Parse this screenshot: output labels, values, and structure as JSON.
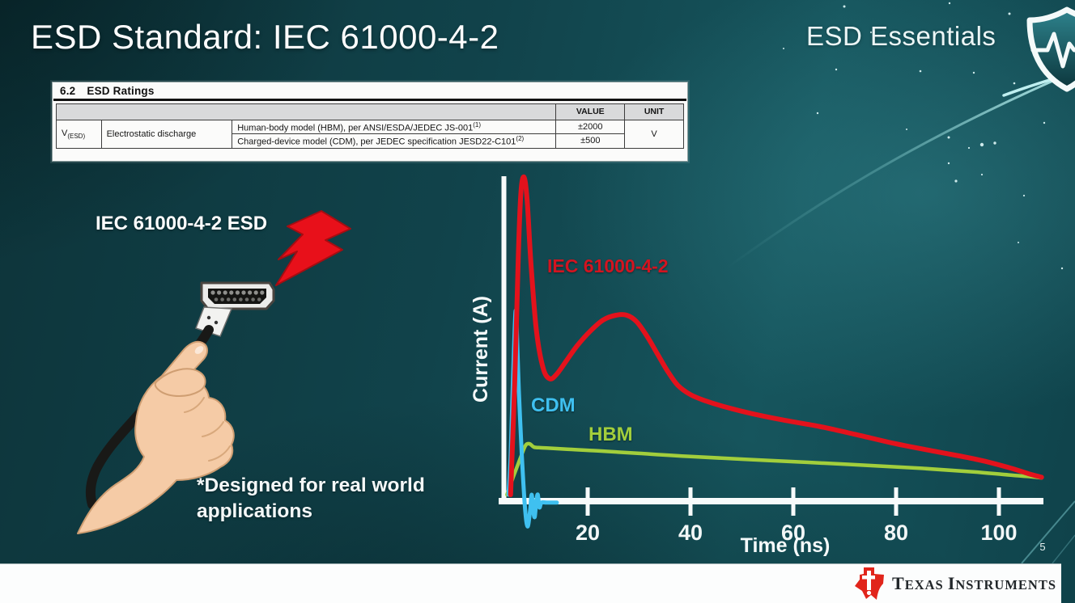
{
  "slide": {
    "title": "ESD Standard: IEC 61000-4-2",
    "series_brand": "ESD Essentials",
    "page_number": "5"
  },
  "ratings_table": {
    "section": "6.2",
    "section_title": "ESD Ratings",
    "col_headers": [
      "VALUE",
      "UNIT"
    ],
    "symbol": "V",
    "symbol_sub": "(ESD)",
    "row_label": "Electrostatic discharge",
    "rows": [
      {
        "desc": "Human-body model (HBM), per ANSI/ESDA/JEDEC JS-001",
        "desc_sup": "(1)",
        "value": "±2000"
      },
      {
        "desc": "Charged-device model (CDM), per JEDEC specification JESD22-C101",
        "desc_sup": "(2)",
        "value": "±500"
      }
    ],
    "unit": "V"
  },
  "illustration": {
    "label": "IEC 61000-4-2 ESD",
    "subject": "hand holding HDMI connector struck by ESD lightning bolt",
    "bolt_color": "#e8101a"
  },
  "note": {
    "line1": "*Designed for real world",
    "line2": "applications"
  },
  "chart_data": {
    "type": "line",
    "title": "",
    "xlabel": "Time (ns)",
    "ylabel": "Current (A)",
    "x_ticks": [
      20,
      40,
      60,
      80,
      100
    ],
    "xlim": [
      0,
      110
    ],
    "ylim_relative": [
      -0.12,
      1.05
    ],
    "grid": false,
    "legend": "inline-labels",
    "note": "y values are relative amplitude (IEC 61000-4-2 peak = 1.0); axis is unlabeled in source",
    "series": [
      {
        "name": "IEC 61000-4-2",
        "color": "#e3121c",
        "x": [
          5.0,
          5.8,
          6.5,
          7.0,
          7.6,
          8.2,
          9.0,
          10.0,
          11.3,
          12.6,
          14,
          16,
          18,
          20.5,
          23,
          25.5,
          27.6,
          29.5,
          31.5,
          33.5,
          35.5,
          37.5,
          40,
          43,
          47,
          52,
          58,
          65,
          72,
          80,
          88,
          96,
          102,
          106,
          108.3
        ],
        "y": [
          0,
          0.35,
          0.75,
          0.95,
          1.0,
          0.93,
          0.72,
          0.52,
          0.4,
          0.365,
          0.38,
          0.425,
          0.47,
          0.515,
          0.55,
          0.565,
          0.565,
          0.545,
          0.5,
          0.445,
          0.39,
          0.345,
          0.315,
          0.295,
          0.275,
          0.255,
          0.235,
          0.215,
          0.19,
          0.16,
          0.135,
          0.11,
          0.085,
          0.065,
          0.055
        ]
      },
      {
        "name": "CDM",
        "color": "#3fc0f0",
        "x": [
          4.6,
          5.0,
          5.4,
          5.8,
          6.0,
          6.2,
          6.6,
          7.2,
          7.8,
          8.3,
          8.8,
          9.1,
          9.4,
          9.7,
          10.0,
          10.3,
          10.6,
          11.0,
          12.0,
          14.0
        ],
        "y": [
          0,
          0.12,
          0.33,
          0.52,
          0.58,
          0.52,
          0.33,
          0.12,
          -0.04,
          -0.1,
          -0.05,
          0.0,
          -0.05,
          -0.07,
          -0.02,
          0.0,
          -0.04,
          -0.025,
          -0.025,
          -0.025
        ]
      },
      {
        "name": "HBM",
        "color": "#a2ce3c",
        "x": [
          4.3,
          5.5,
          6.9,
          7.9,
          8.7,
          9.5,
          10.5,
          12,
          16,
          22,
          30,
          40,
          55,
          70,
          85,
          95,
          102,
          106,
          108.3
        ],
        "y": [
          0,
          0.055,
          0.115,
          0.155,
          0.16,
          0.15,
          0.148,
          0.147,
          0.143,
          0.138,
          0.13,
          0.12,
          0.108,
          0.096,
          0.083,
          0.072,
          0.062,
          0.057,
          0.053
        ]
      }
    ]
  },
  "footer": {
    "logo_name": "Texas Instruments",
    "parts": [
      "T",
      "EXAS",
      "I",
      "NSTRUMENTS"
    ],
    "bug_color": "#e1251b"
  }
}
